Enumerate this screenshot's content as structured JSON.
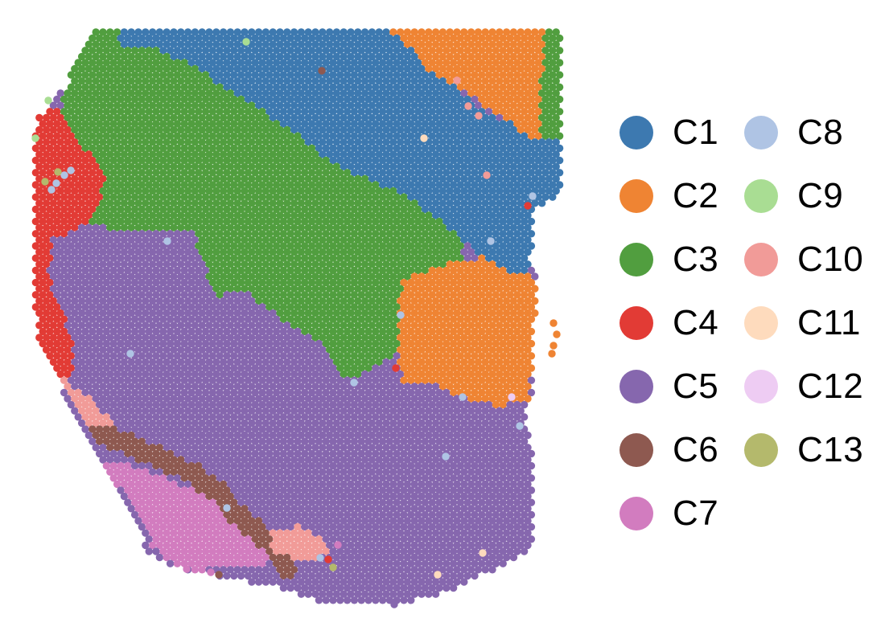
{
  "chart_data": {
    "type": "scatter",
    "title": "",
    "xlabel": "",
    "ylabel": "",
    "grid": false,
    "axes_visible": false,
    "legend_placement": "right",
    "marker": "hexagon",
    "series": [
      {
        "name": "C1",
        "color": "#3D79B0",
        "region": "upper-right diagonal band"
      },
      {
        "name": "C2",
        "color": "#EF8433",
        "region": "top-right corner and right middle"
      },
      {
        "name": "C3",
        "color": "#519E3F",
        "region": "upper-left and center diagonal band"
      },
      {
        "name": "C4",
        "color": "#E23B35",
        "region": "left edge"
      },
      {
        "name": "C5",
        "color": "#8667AE",
        "region": "lower center (largest)"
      },
      {
        "name": "C6",
        "color": "#8E5950",
        "region": "lower-left diagonal strip"
      },
      {
        "name": "C7",
        "color": "#D27CBF",
        "region": "bottom-left"
      },
      {
        "name": "C8",
        "color": "#AFC4E4",
        "region": "scattered spots"
      },
      {
        "name": "C9",
        "color": "#A9DD93",
        "region": "scattered spots"
      },
      {
        "name": "C10",
        "color": "#F19B98",
        "region": "lower-left edge strip"
      },
      {
        "name": "C11",
        "color": "#FEDBBD",
        "region": "scattered spots"
      },
      {
        "name": "C12",
        "color": "#EECCF3",
        "region": "scattered spots"
      },
      {
        "name": "C13",
        "color": "#B4B96C",
        "region": "scattered spots"
      }
    ]
  }
}
